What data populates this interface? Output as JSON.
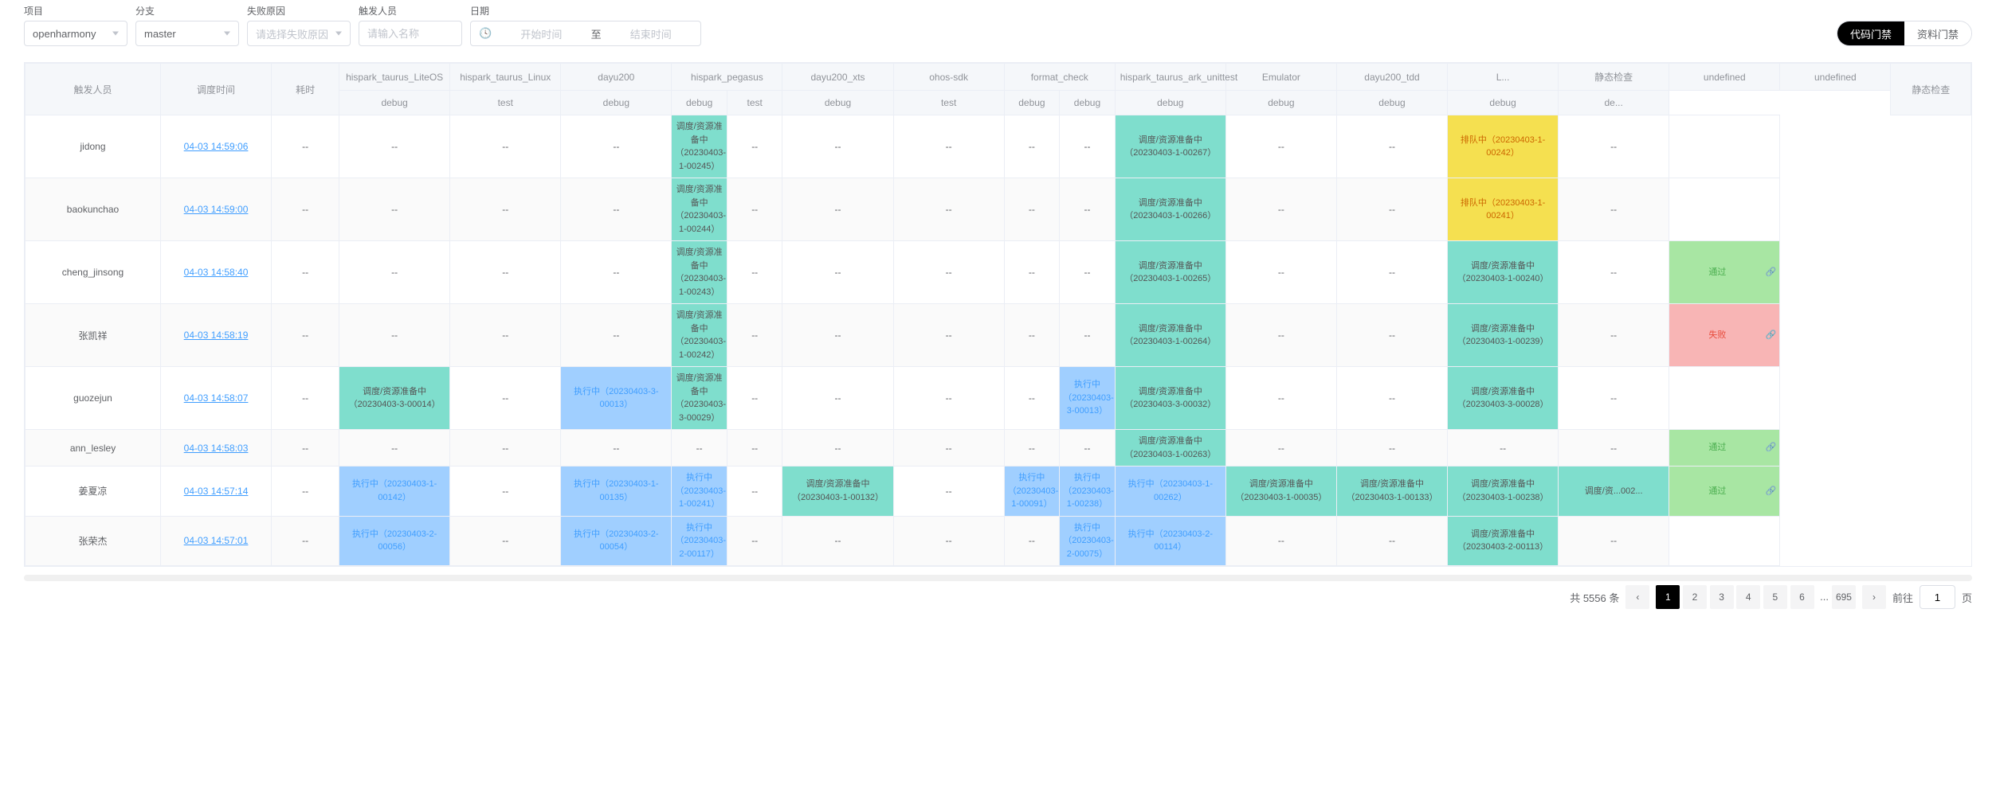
{
  "filters": {
    "project": {
      "label": "项目",
      "value": "openharmony"
    },
    "branch": {
      "label": "分支",
      "value": "master"
    },
    "failreason": {
      "label": "失败原因",
      "placeholder": "请选择失败原因"
    },
    "trigger_person": {
      "label": "触发人员",
      "placeholder": "请输入名称"
    },
    "date": {
      "label": "日期",
      "start_placeholder": "开始时间",
      "sep": "至",
      "end_placeholder": "结束时间"
    }
  },
  "toggle": {
    "code": "代码门禁",
    "material": "资料门禁"
  },
  "table": {
    "header_row1": [
      "触发人员",
      "调度时间",
      "耗时",
      "hispark_taurus_LiteOS",
      "hispark_taurus_Linux",
      "dayu200",
      "hispark_pegasus",
      "dayu200_xts",
      "ohos-sdk",
      "format_check",
      "hispark_taurus_ark_unittest",
      "Emulator",
      "dayu200_tdd",
      "L...",
      "静态检查"
    ],
    "header_row2": [
      "debug",
      "test",
      "debug",
      "debug",
      "test",
      "debug",
      "test",
      "debug",
      "debug",
      "debug",
      "debug",
      "debug",
      "debug",
      "de..."
    ],
    "colgroups": [
      1,
      1,
      1,
      2,
      1,
      1,
      2,
      1,
      1,
      1,
      1,
      1,
      1,
      1
    ],
    "rows": [
      {
        "user": "jidong",
        "time": "04-03 14:59:06",
        "dur": "--",
        "cells": [
          {
            "t": "--"
          },
          {
            "t": "--"
          },
          {
            "t": "--"
          },
          {
            "t": "调度/资源准备中（20230403-1-00245）",
            "s": "prep"
          },
          {
            "t": "--"
          },
          {
            "t": "--"
          },
          {
            "t": "--"
          },
          {
            "t": "--"
          },
          {
            "t": "--"
          },
          {
            "t": "调度/资源准备中（20230403-1-00267）",
            "s": "prep"
          },
          {
            "t": "--"
          },
          {
            "t": "--"
          },
          {
            "t": "排队中（20230403-1-00242）",
            "s": "queue"
          },
          {
            "t": "--"
          }
        ],
        "pin": {
          "t": "",
          "s": ""
        }
      },
      {
        "user": "baokunchao",
        "time": "04-03 14:59:00",
        "dur": "--",
        "cells": [
          {
            "t": "--"
          },
          {
            "t": "--"
          },
          {
            "t": "--"
          },
          {
            "t": "调度/资源准备中（20230403-1-00244）",
            "s": "prep"
          },
          {
            "t": "--"
          },
          {
            "t": "--"
          },
          {
            "t": "--"
          },
          {
            "t": "--"
          },
          {
            "t": "--"
          },
          {
            "t": "调度/资源准备中（20230403-1-00266）",
            "s": "prep"
          },
          {
            "t": "--"
          },
          {
            "t": "--"
          },
          {
            "t": "排队中（20230403-1-00241）",
            "s": "queue"
          },
          {
            "t": "--"
          }
        ],
        "pin": {
          "t": "",
          "s": ""
        }
      },
      {
        "user": "cheng_jinsong",
        "time": "04-03 14:58:40",
        "dur": "--",
        "cells": [
          {
            "t": "--"
          },
          {
            "t": "--"
          },
          {
            "t": "--"
          },
          {
            "t": "调度/资源准备中（20230403-1-00243）",
            "s": "prep"
          },
          {
            "t": "--"
          },
          {
            "t": "--"
          },
          {
            "t": "--"
          },
          {
            "t": "--"
          },
          {
            "t": "--"
          },
          {
            "t": "调度/资源准备中（20230403-1-00265）",
            "s": "prep"
          },
          {
            "t": "--"
          },
          {
            "t": "--"
          },
          {
            "t": "调度/资源准备中（20230403-1-00240）",
            "s": "prep"
          },
          {
            "t": "--"
          }
        ],
        "pin": {
          "t": "通过",
          "s": "pass",
          "icon": true
        }
      },
      {
        "user": "张凯祥",
        "time": "04-03 14:58:19",
        "dur": "--",
        "cells": [
          {
            "t": "--"
          },
          {
            "t": "--"
          },
          {
            "t": "--"
          },
          {
            "t": "调度/资源准备中（20230403-1-00242）",
            "s": "prep"
          },
          {
            "t": "--"
          },
          {
            "t": "--"
          },
          {
            "t": "--"
          },
          {
            "t": "--"
          },
          {
            "t": "--"
          },
          {
            "t": "调度/资源准备中（20230403-1-00264）",
            "s": "prep"
          },
          {
            "t": "--"
          },
          {
            "t": "--"
          },
          {
            "t": "调度/资源准备中（20230403-1-00239）",
            "s": "prep"
          },
          {
            "t": "--"
          }
        ],
        "pin": {
          "t": "失败",
          "s": "fail",
          "icon": true
        }
      },
      {
        "user": "guozejun",
        "time": "04-03 14:58:07",
        "dur": "--",
        "cells": [
          {
            "t": "调度/资源准备中（20230403-3-00014）",
            "s": "prep"
          },
          {
            "t": "--"
          },
          {
            "t": "执行中（20230403-3-00013）",
            "s": "run"
          },
          {
            "t": "调度/资源准备中（20230403-3-00029）",
            "s": "prep"
          },
          {
            "t": "--"
          },
          {
            "t": "--"
          },
          {
            "t": "--"
          },
          {
            "t": "--"
          },
          {
            "t": "执行中（20230403-3-00013）",
            "s": "run"
          },
          {
            "t": "调度/资源准备中（20230403-3-00032）",
            "s": "prep"
          },
          {
            "t": "--"
          },
          {
            "t": "--"
          },
          {
            "t": "调度/资源准备中（20230403-3-00028）",
            "s": "prep"
          },
          {
            "t": "--"
          }
        ],
        "pin": {
          "t": "",
          "s": ""
        }
      },
      {
        "user": "ann_lesley",
        "time": "04-03 14:58:03",
        "dur": "--",
        "cells": [
          {
            "t": "--"
          },
          {
            "t": "--"
          },
          {
            "t": "--"
          },
          {
            "t": "--"
          },
          {
            "t": "--"
          },
          {
            "t": "--"
          },
          {
            "t": "--"
          },
          {
            "t": "--"
          },
          {
            "t": "--"
          },
          {
            "t": "调度/资源准备中（20230403-1-00263）",
            "s": "prep"
          },
          {
            "t": "--"
          },
          {
            "t": "--"
          },
          {
            "t": "--"
          },
          {
            "t": "--"
          }
        ],
        "pin": {
          "t": "通过",
          "s": "pass",
          "icon": true
        }
      },
      {
        "user": "姜夏凉",
        "time": "04-03 14:57:14",
        "dur": "--",
        "cells": [
          {
            "t": "执行中（20230403-1-00142）",
            "s": "run"
          },
          {
            "t": "--"
          },
          {
            "t": "执行中（20230403-1-00135）",
            "s": "run"
          },
          {
            "t": "执行中（20230403-1-00241）",
            "s": "run"
          },
          {
            "t": "--"
          },
          {
            "t": "调度/资源准备中（20230403-1-00132）",
            "s": "prep"
          },
          {
            "t": "--"
          },
          {
            "t": "执行中（20230403-1-00091）",
            "s": "run"
          },
          {
            "t": "执行中（20230403-1-00238）",
            "s": "run"
          },
          {
            "t": "执行中（20230403-1-00262）",
            "s": "run"
          },
          {
            "t": "调度/资源准备中（20230403-1-00035）",
            "s": "prep"
          },
          {
            "t": "调度/资源准备中（20230403-1-00133）",
            "s": "prep"
          },
          {
            "t": "调度/资源准备中（20230403-1-00238）",
            "s": "prep"
          },
          {
            "t": "调度/资...002...",
            "s": "prep"
          }
        ],
        "pin": {
          "t": "通过",
          "s": "pass",
          "icon": true
        }
      },
      {
        "user": "张荣杰",
        "time": "04-03 14:57:01",
        "dur": "--",
        "cells": [
          {
            "t": "执行中（20230403-2-00056）",
            "s": "run"
          },
          {
            "t": "--"
          },
          {
            "t": "执行中（20230403-2-00054）",
            "s": "run"
          },
          {
            "t": "执行中（20230403-2-00117）",
            "s": "run"
          },
          {
            "t": "--"
          },
          {
            "t": "--"
          },
          {
            "t": "--"
          },
          {
            "t": "--"
          },
          {
            "t": "执行中（20230403-2-00075）",
            "s": "run"
          },
          {
            "t": "执行中（20230403-2-00114）",
            "s": "run"
          },
          {
            "t": "--"
          },
          {
            "t": "--"
          },
          {
            "t": "调度/资源准备中（20230403-2-00113）",
            "s": "prep"
          },
          {
            "t": "--"
          }
        ],
        "pin": {
          "t": "",
          "s": ""
        }
      }
    ]
  },
  "pager": {
    "total_text": "共 5556 条",
    "pages": [
      "1",
      "2",
      "3",
      "4",
      "5",
      "6",
      "695"
    ],
    "goto_pre": "前往",
    "goto_post": "页",
    "goto_val": "1"
  },
  "colors": {
    "prep": "#7fdecd",
    "queue": "#f5e050",
    "run": "#a0cfff",
    "pass": "#a8e6a3",
    "fail": "#f8b5b5",
    "link": "#409eff"
  }
}
